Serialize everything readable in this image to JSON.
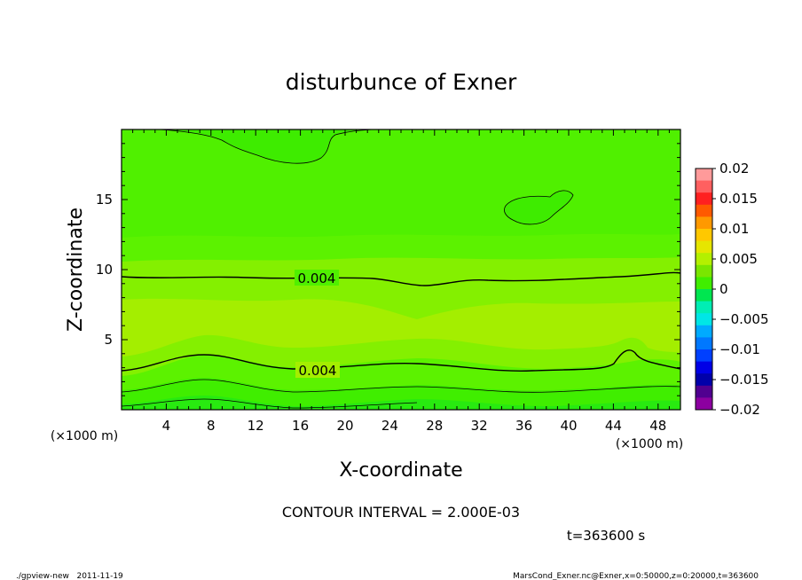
{
  "chart_data": {
    "type": "heatmap",
    "title": "disturbunce of Exner",
    "xlabel": "X-coordinate",
    "ylabel": "Z-coordinate",
    "x_unit_left": "(×1000 m)",
    "x_unit_right": "(×1000 m)",
    "xlim": [
      0,
      50
    ],
    "ylim": [
      0,
      20
    ],
    "x_ticks": [
      "4",
      "8",
      "12",
      "16",
      "20",
      "24",
      "28",
      "32",
      "36",
      "40",
      "44",
      "48"
    ],
    "y_ticks": [
      "5",
      "10",
      "15"
    ],
    "contour_labels": [
      "0.004",
      "0.004"
    ],
    "contour_interval_text": "CONTOUR INTERVAL = 2.000E-03",
    "time_text": "t=363600 s",
    "footer_left": "./gpview-new   2011-11-19",
    "footer_right": "MarsCond_Exner.nc@Exner,x=0:50000,z=0:20000,t=363600",
    "colorbar": {
      "labels": [
        "0.02",
        "0.015",
        "0.01",
        "0.005",
        "0",
        "−0.005",
        "−0.01",
        "−0.015",
        "−0.02"
      ],
      "colors": [
        "#ff9a9a",
        "#ff6060",
        "#ff2020",
        "#ff5a00",
        "#ff9900",
        "#ffc800",
        "#e6e600",
        "#b4f000",
        "#7ae600",
        "#40ee00",
        "#00e650",
        "#00eeb4",
        "#00e6e6",
        "#00aaff",
        "#0078ff",
        "#0040ff",
        "#0000e6",
        "#0000aa",
        "#500090",
        "#8c00a0"
      ]
    },
    "bands_bottom_to_top": [
      {
        "z": 0.0,
        "value": 0.0
      },
      {
        "z": 0.6,
        "value": 0.001
      },
      {
        "z": 1.5,
        "value": 0.002
      },
      {
        "z": 3.0,
        "value": 0.0035
      },
      {
        "z": 4.8,
        "value": 0.006
      },
      {
        "z": 8.0,
        "value": 0.0045
      },
      {
        "z": 9.5,
        "value": 0.0035
      },
      {
        "z": 12.5,
        "value": 0.002
      },
      {
        "z": 17.0,
        "value": 0.001
      }
    ]
  }
}
